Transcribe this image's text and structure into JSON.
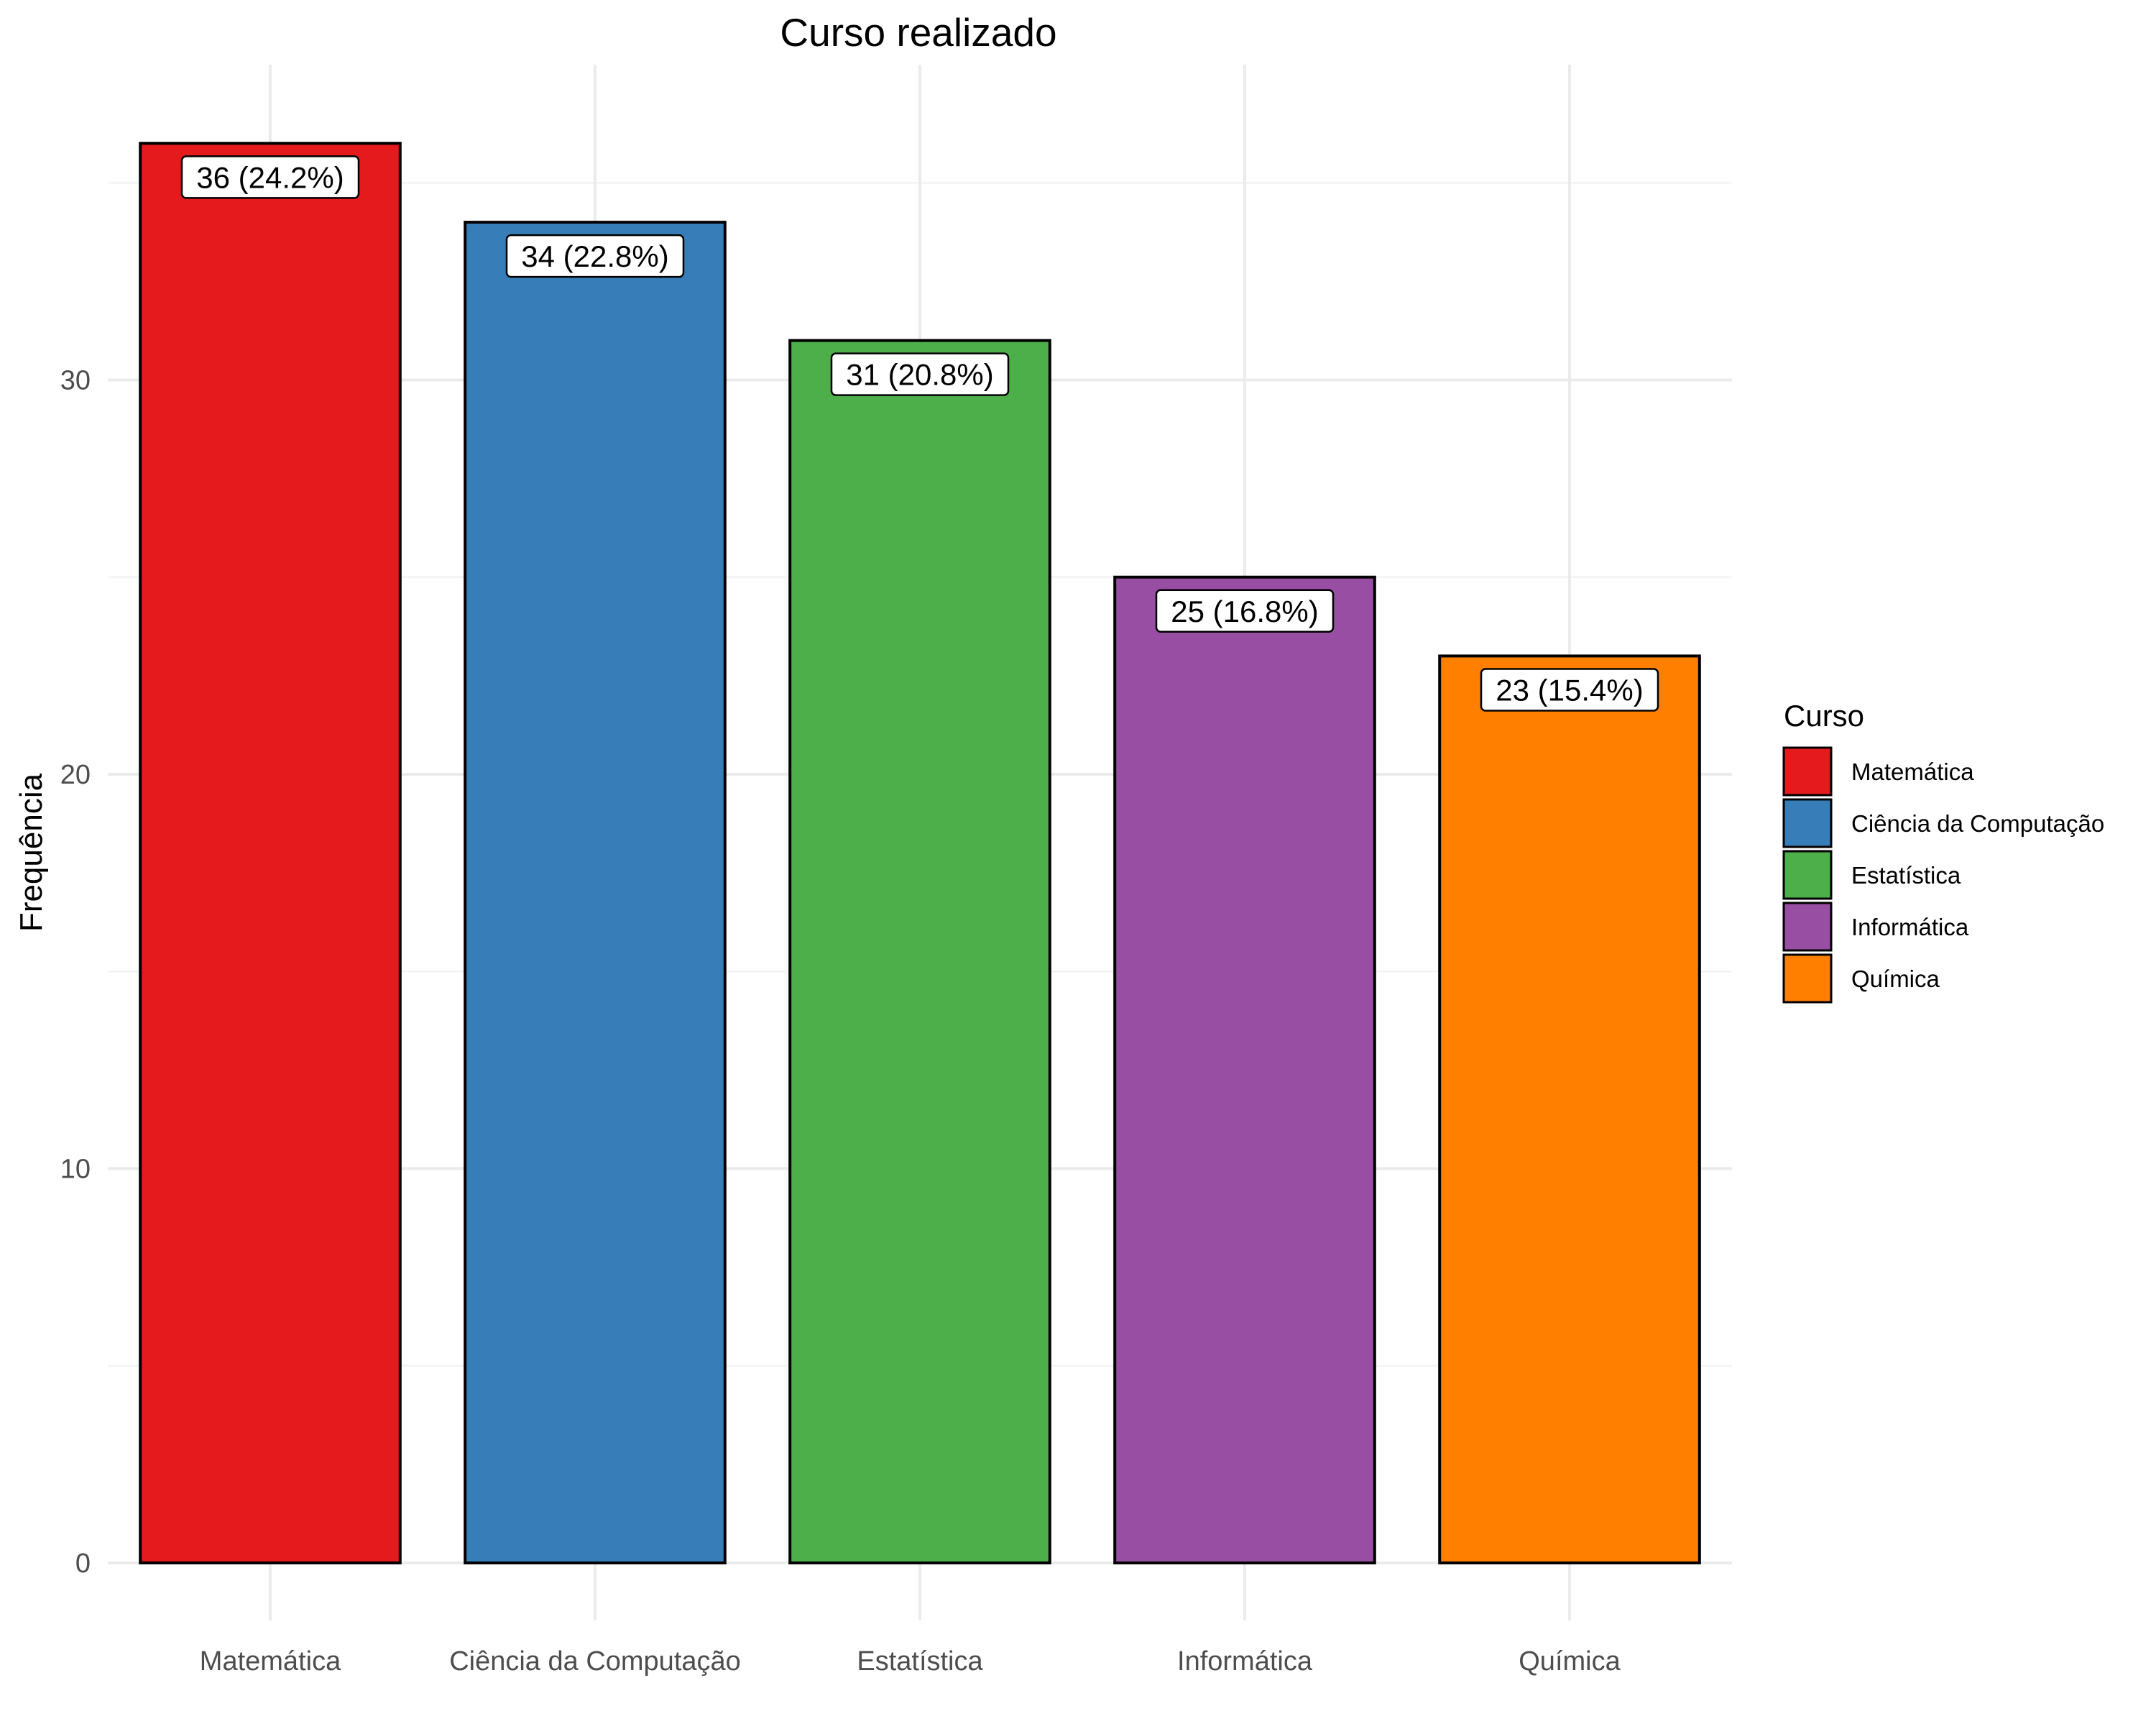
{
  "chart_data": {
    "type": "bar",
    "title": "Curso realizado",
    "xlabel": "",
    "ylabel": "Frequência",
    "categories": [
      "Matemática",
      "Ciência da Computação",
      "Estatística",
      "Informática",
      "Química"
    ],
    "values": [
      36,
      34,
      31,
      25,
      23
    ],
    "data_labels": [
      "36 (24.2%)",
      "34 (22.8%)",
      "31 (20.8%)",
      "25 (16.8%)",
      "23 (15.4%)"
    ],
    "colors": [
      "#E41A1C",
      "#377EB8",
      "#4DAF4A",
      "#984EA3",
      "#FF7F00"
    ],
    "ylim": [
      0,
      37.8
    ],
    "y_ticks": [
      0,
      10,
      20,
      30
    ],
    "y_tick_labels": [
      "0",
      "10",
      "20",
      "30"
    ],
    "grid": true,
    "legend": {
      "title": "Curso",
      "placement": "right",
      "entries": [
        "Matemática",
        "Ciência da Computação",
        "Estatística",
        "Informática",
        "Química"
      ]
    }
  }
}
